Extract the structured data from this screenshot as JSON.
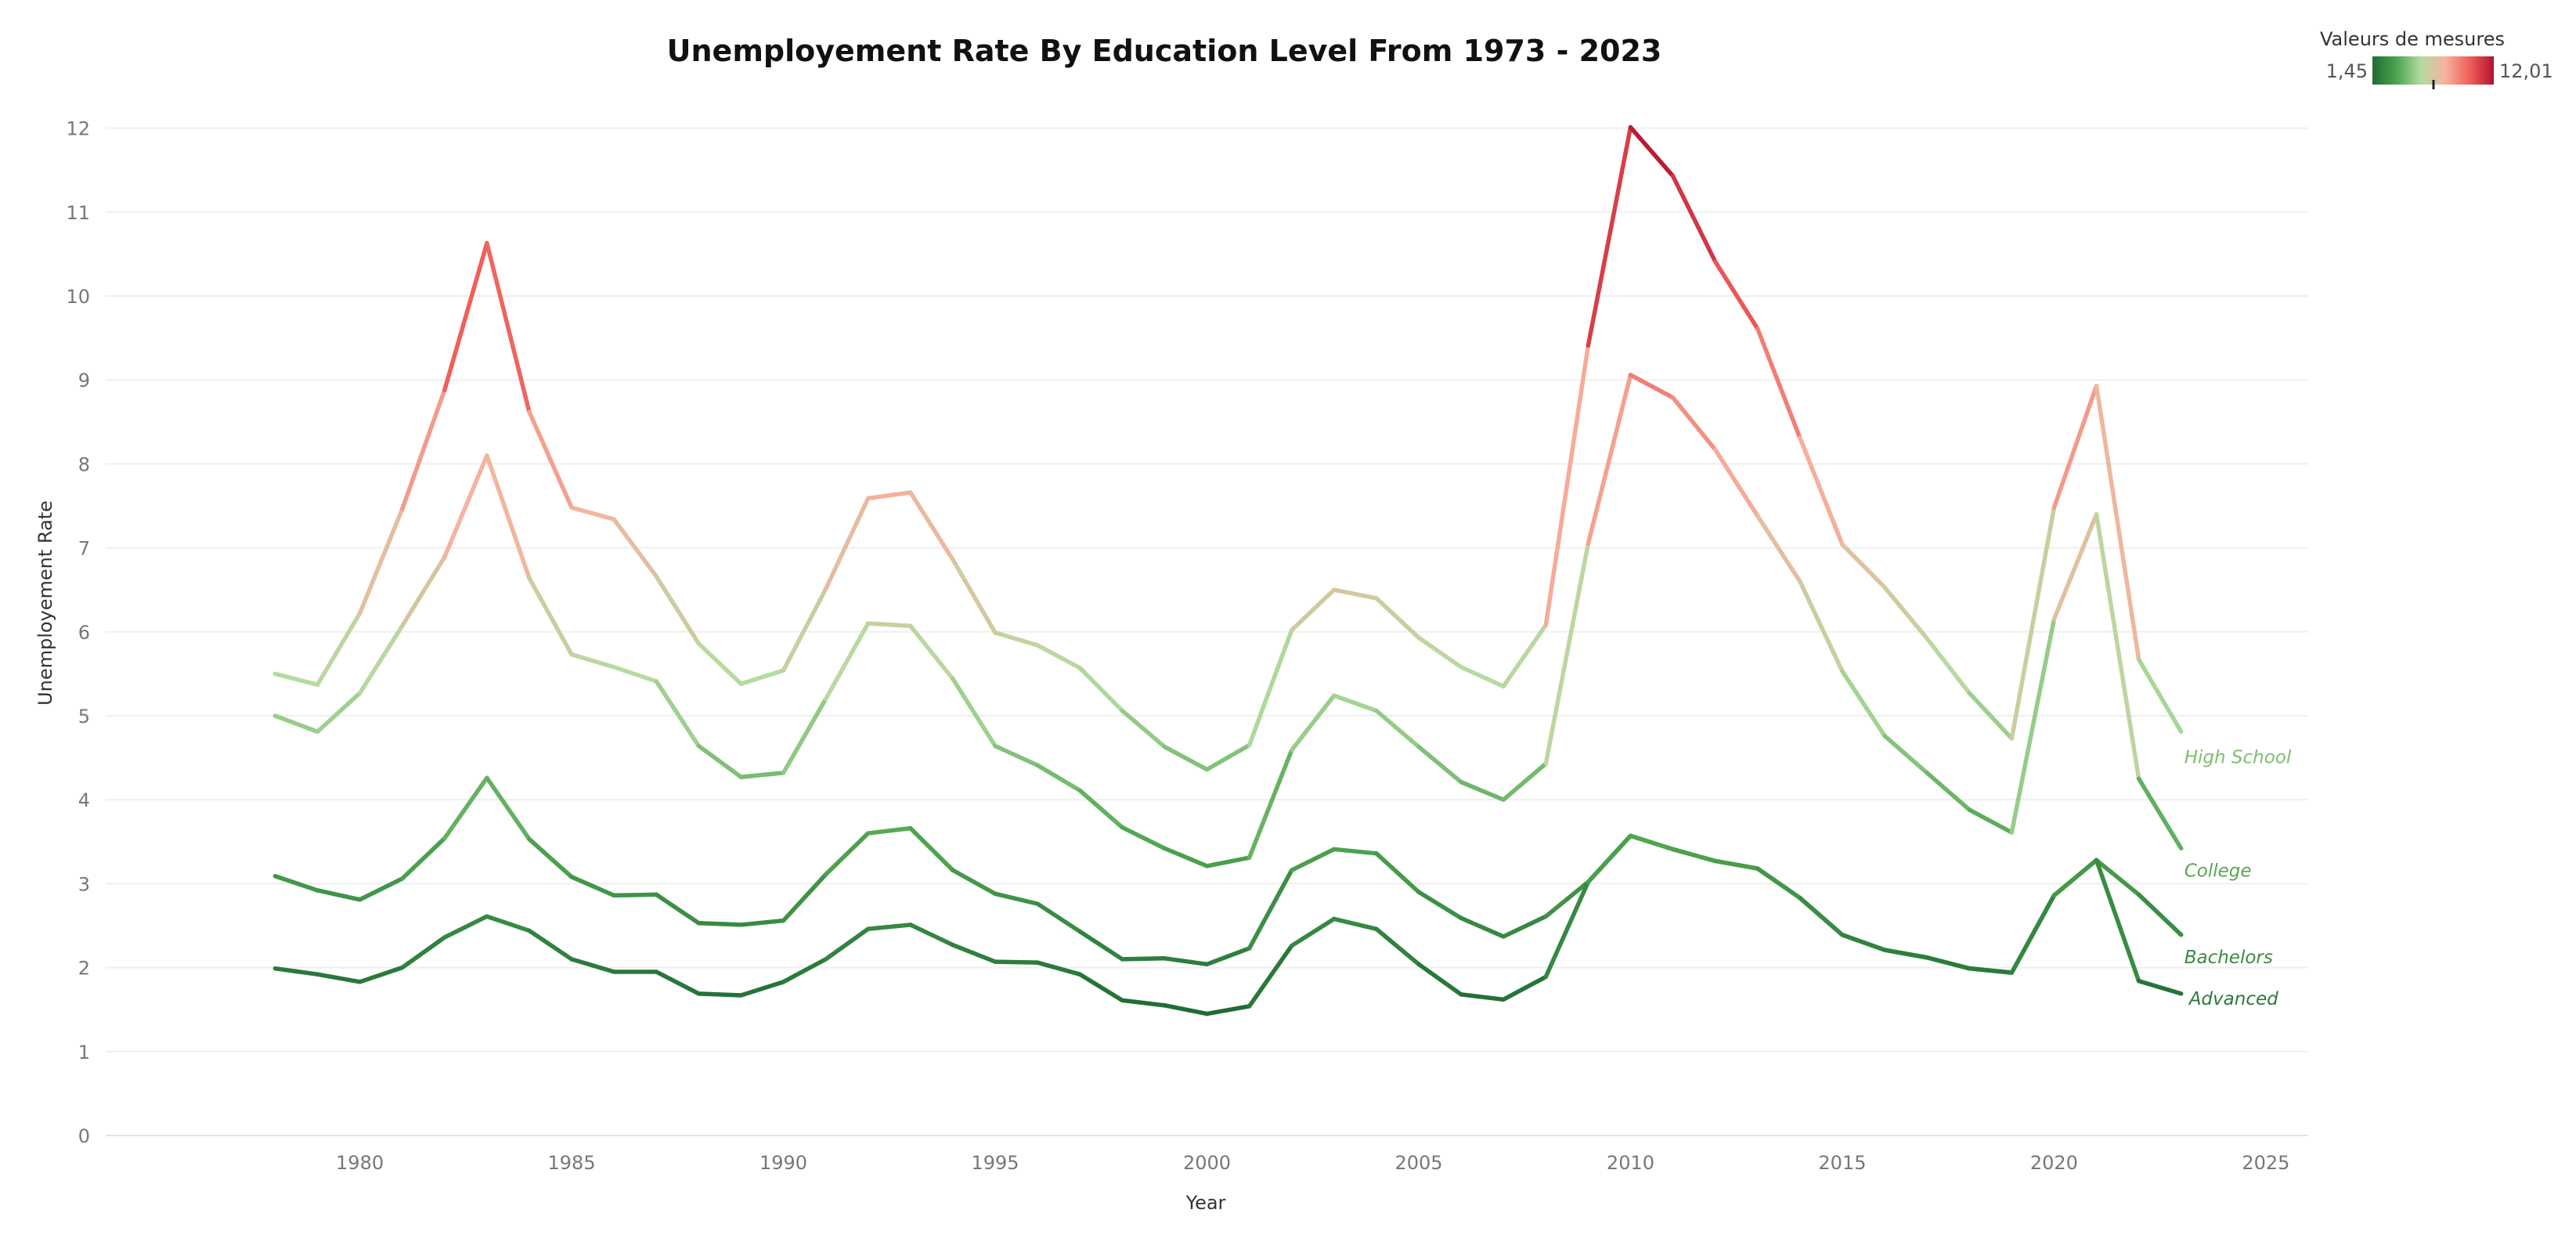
{
  "chart_data": {
    "type": "line",
    "title": "Unemployement Rate By Education Level From 1973 - 2023",
    "xlabel": "Year",
    "ylabel": "Unemployement Rate",
    "xlim": [
      1974,
      2026
    ],
    "ylim": [
      0,
      12.5
    ],
    "x_ticks": [
      1980,
      1985,
      1990,
      1995,
      2000,
      2005,
      2010,
      2015,
      2020,
      2025
    ],
    "y_ticks": [
      0,
      1,
      2,
      3,
      4,
      5,
      6,
      7,
      8,
      9,
      10,
      11,
      12
    ],
    "grid": "horizontal",
    "x": [
      1978,
      1979,
      1980,
      1981,
      1982,
      1983,
      1984,
      1985,
      1986,
      1987,
      1988,
      1989,
      1990,
      1991,
      1992,
      1993,
      1994,
      1995,
      1996,
      1997,
      1998,
      1999,
      2000,
      2001,
      2002,
      2003,
      2004,
      2005,
      2006,
      2007,
      2008,
      2009,
      2010,
      2011,
      2012,
      2013,
      2014,
      2015,
      2016,
      2017,
      2018,
      2019,
      2020,
      2021,
      2022,
      2023
    ],
    "series": [
      {
        "name": "High School",
        "values": [
          5.5,
          5.37,
          6.22,
          7.46,
          8.88,
          10.63,
          8.62,
          7.48,
          7.34,
          6.66,
          5.86,
          5.38,
          5.54,
          6.51,
          7.59,
          7.66,
          6.86,
          5.99,
          5.84,
          5.57,
          5.06,
          4.63,
          4.36,
          4.65,
          6.02,
          6.5,
          6.4,
          5.93,
          5.58,
          5.35,
          6.08,
          9.41,
          12.01,
          11.43,
          10.41,
          9.61,
          8.31,
          7.04,
          6.53,
          5.92,
          5.27,
          4.73,
          7.48,
          8.93,
          5.67,
          4.81
        ]
      },
      {
        "name": "College",
        "values": [
          5.0,
          4.81,
          5.27,
          6.07,
          6.89,
          8.1,
          6.64,
          5.73,
          5.58,
          5.41,
          4.64,
          4.27,
          4.32,
          5.2,
          6.1,
          6.07,
          5.44,
          4.64,
          4.41,
          4.11,
          3.67,
          3.42,
          3.21,
          3.31,
          4.59,
          5.24,
          5.06,
          4.63,
          4.21,
          4.0,
          4.43,
          7.05,
          9.06,
          8.79,
          8.17,
          7.38,
          6.6,
          5.53,
          4.76,
          4.32,
          3.88,
          3.61,
          6.15,
          7.4,
          4.25,
          3.42
        ]
      },
      {
        "name": "Bachelors",
        "values": [
          3.09,
          2.92,
          2.81,
          3.06,
          3.54,
          4.26,
          3.53,
          3.08,
          2.86,
          2.87,
          2.53,
          2.51,
          2.56,
          3.11,
          3.6,
          3.66,
          3.16,
          2.88,
          2.76,
          2.43,
          2.1,
          2.11,
          2.04,
          2.23,
          3.16,
          3.41,
          3.36,
          2.9,
          2.59,
          2.37,
          2.61,
          3.02,
          3.57,
          3.41,
          3.27,
          3.18,
          2.83,
          2.39,
          2.21,
          2.12,
          1.99,
          1.94,
          2.86,
          3.28,
          2.87,
          2.39
        ]
      },
      {
        "name": "Advanced",
        "values": [
          1.99,
          1.92,
          1.83,
          2.0,
          2.36,
          2.61,
          2.44,
          2.1,
          1.95,
          1.95,
          1.69,
          1.67,
          1.83,
          2.1,
          2.46,
          2.51,
          2.27,
          2.07,
          2.06,
          1.92,
          1.61,
          1.55,
          1.45,
          1.54,
          2.26,
          2.58,
          2.46,
          2.04,
          1.68,
          1.62,
          1.89,
          3.02,
          3.57,
          3.41,
          3.27,
          3.18,
          2.83,
          2.39,
          2.21,
          2.12,
          1.99,
          1.94,
          2.86,
          3.28,
          1.84,
          1.69
        ]
      }
    ],
    "label_colors": {
      "High School": "#7fbf6a",
      "College": "#5aa552",
      "Bachelors": "#3a8a43",
      "Advanced": "#2a7a3a"
    },
    "color_legend": {
      "title": "Valeurs de mesures",
      "min_label": "1,45",
      "max_label": "12,01",
      "min": 1.45,
      "max": 12.01,
      "mid": 6.45,
      "placement": "top-right",
      "stops": [
        "#1e6b34",
        "#4ea44f",
        "#b3dca0",
        "#f6b29e",
        "#f05f5a",
        "#b3112e"
      ]
    }
  }
}
